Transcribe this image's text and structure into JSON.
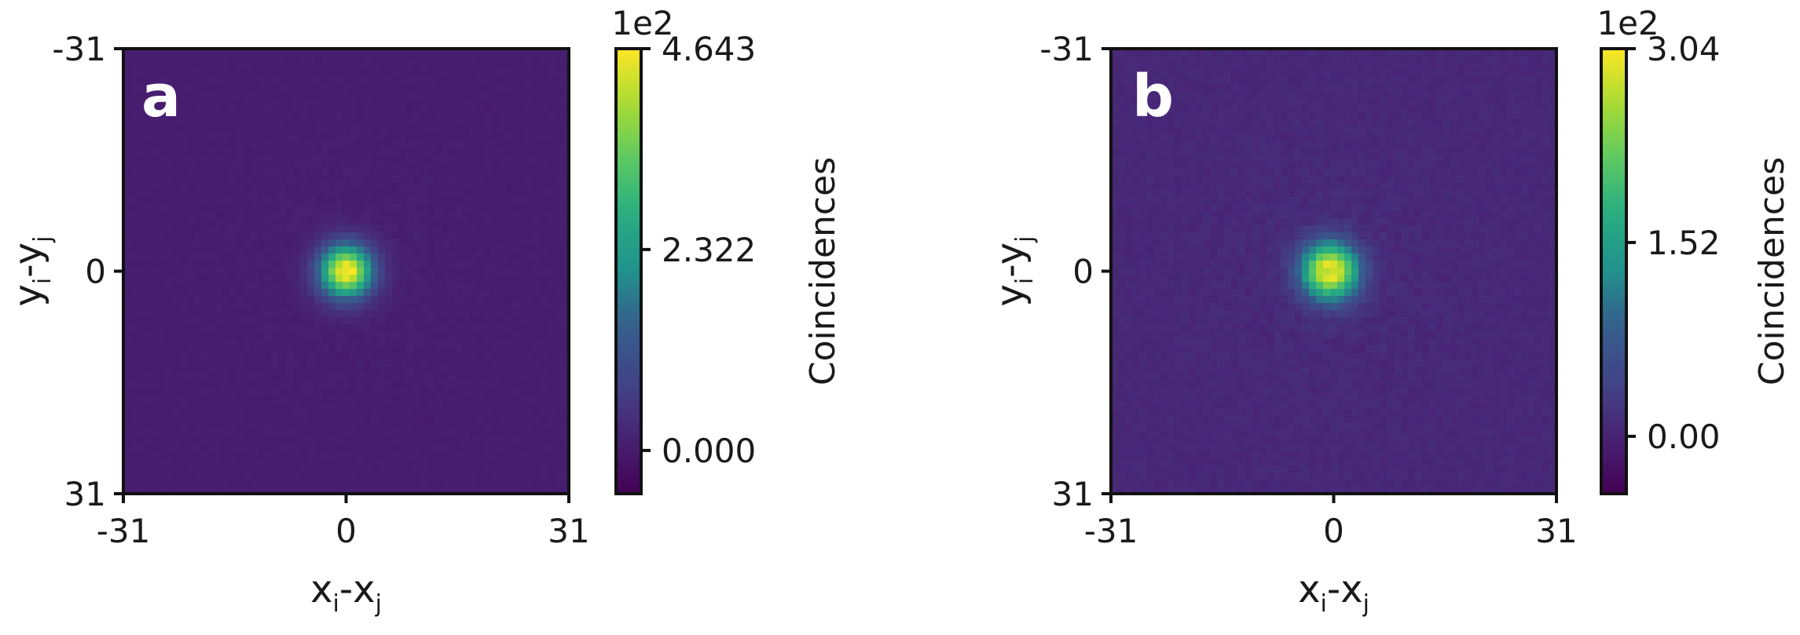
{
  "chart_data": [
    {
      "type": "heatmap",
      "panel_label": "a",
      "xlabel": "x_i-x_j",
      "ylabel": "y_i-y_j",
      "xlabel_parts": {
        "base1": "x",
        "sub1": "i",
        "dash": "-",
        "base2": "x",
        "sub2": "j"
      },
      "ylabel_parts": {
        "base1": "y",
        "sub1": "i",
        "dash": "-",
        "base2": "y",
        "sub2": "j"
      },
      "x_ticks": [
        "-31",
        "0",
        "31"
      ],
      "y_ticks": [
        "-31",
        "0",
        "31"
      ],
      "xlim": [
        -31,
        31
      ],
      "ylim": [
        -31,
        31
      ],
      "y_inverted": true,
      "colormap": "viridis",
      "colorbar": {
        "label": "Coincidences",
        "exponent_label": "1e2",
        "tick_labels": [
          "4.643",
          "2.322",
          "0.000"
        ],
        "tick_values": [
          4.643,
          2.322,
          0.0
        ],
        "vmin": -0.5,
        "vmax": 4.643
      },
      "peak": {
        "x": 0,
        "y": 0,
        "value": 4.643
      },
      "background_level": 0.05,
      "peak_width": 2.6,
      "noise_level": 0.08,
      "seed": 11
    },
    {
      "type": "heatmap",
      "panel_label": "b",
      "xlabel": "x_i-x_j",
      "ylabel": "y_i-y_j",
      "xlabel_parts": {
        "base1": "x",
        "sub1": "i",
        "dash": "-",
        "base2": "x",
        "sub2": "j"
      },
      "ylabel_parts": {
        "base1": "y",
        "sub1": "i",
        "dash": "-",
        "base2": "y",
        "sub2": "j"
      },
      "x_ticks": [
        "-31",
        "0",
        "31"
      ],
      "y_ticks": [
        "-31",
        "0",
        "31"
      ],
      "xlim": [
        -31,
        31
      ],
      "ylim": [
        -31,
        31
      ],
      "y_inverted": true,
      "colormap": "viridis",
      "colorbar": {
        "label": "Coincidences",
        "exponent_label": "1e2",
        "tick_labels": [
          "3.04",
          "1.52",
          "0.00"
        ],
        "tick_values": [
          3.04,
          1.52,
          0.0
        ],
        "vmin": -0.45,
        "vmax": 3.04
      },
      "peak": {
        "x": -0.5,
        "y": 0,
        "value": 3.04
      },
      "background_level": 0.05,
      "peak_width": 2.8,
      "noise_level": 0.12,
      "seed": 29
    }
  ]
}
